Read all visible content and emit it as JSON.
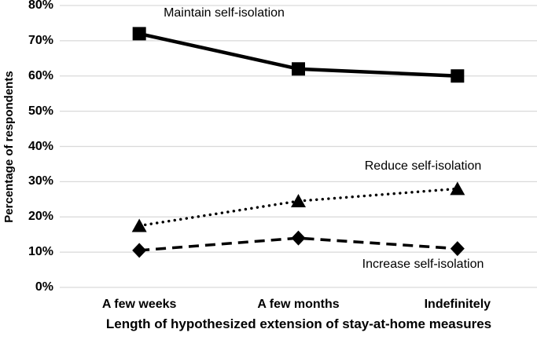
{
  "chart_data": {
    "type": "line",
    "title": "",
    "categories": [
      "A few weeks",
      "A few months",
      "Indefinitely"
    ],
    "series": [
      {
        "name": "Maintain self-isolation",
        "marker": "square",
        "line_style": "solid",
        "values": [
          72,
          62,
          60
        ]
      },
      {
        "name": "Reduce self-isolation",
        "marker": "triangle",
        "line_style": "dotted",
        "values": [
          17.5,
          24.5,
          28
        ]
      },
      {
        "name": "Increase self-isolation",
        "marker": "diamond",
        "line_style": "dashed",
        "values": [
          10.5,
          14,
          11
        ]
      }
    ],
    "xlabel": "Length of hypothesized extension of stay-at-home measures",
    "ylabel": "Percentage of respondents",
    "ylim": [
      0,
      80
    ],
    "y_tick_step": 10,
    "y_ticks": [
      "0%",
      "10%",
      "20%",
      "30%",
      "40%",
      "50%",
      "60%",
      "70%",
      "80%"
    ],
    "grid": "horizontal",
    "legend_position": "inline-annotations",
    "colors": {
      "series": "#000000",
      "gridline": "#d9d9d9",
      "background": "#ffffff",
      "text": "#000000"
    }
  }
}
